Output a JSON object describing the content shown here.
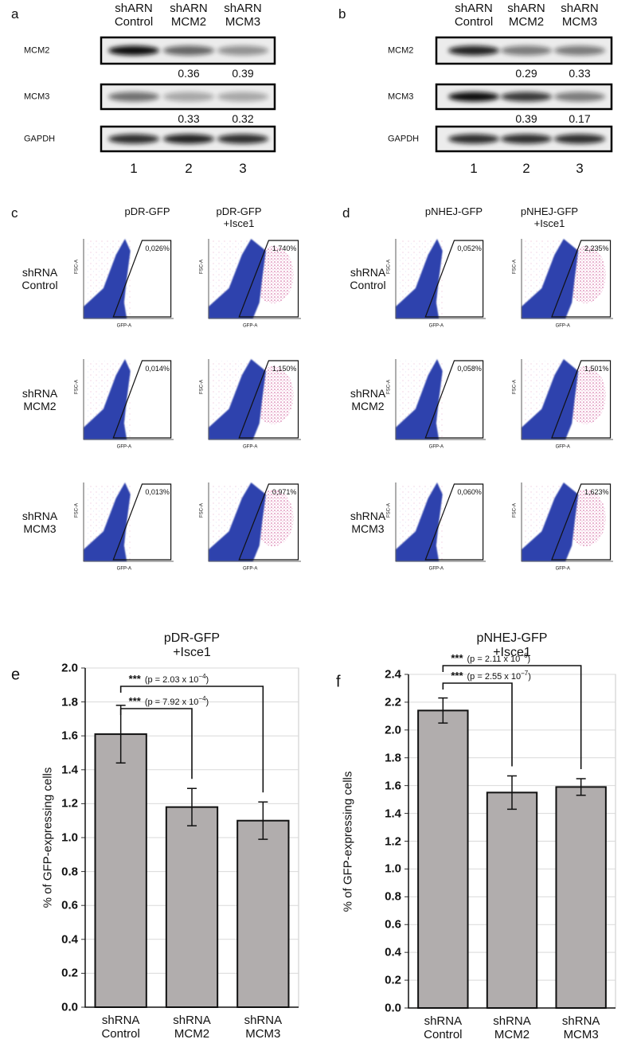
{
  "blots": [
    {
      "label": "a",
      "lanes": [
        "shARN Control",
        "shARN MCM2",
        "shARN MCM3"
      ],
      "rows": [
        {
          "name": "MCM2",
          "ratios": [
            0.36,
            0.39
          ]
        },
        {
          "name": "MCM3",
          "ratios": [
            0.33,
            0.32
          ]
        },
        {
          "name": "GAPDH"
        }
      ],
      "lane_numbers": [
        1,
        2,
        3
      ]
    },
    {
      "label": "b",
      "lanes": [
        "shARN Control",
        "shARN MCM2",
        "shARN MCM3"
      ],
      "rows": [
        {
          "name": "MCM2",
          "ratios": [
            0.29,
            0.33
          ]
        },
        {
          "name": "MCM3",
          "ratios": [
            0.39,
            0.17
          ]
        },
        {
          "name": "GAPDH"
        }
      ],
      "lane_numbers": [
        1,
        2,
        3
      ]
    }
  ],
  "flow": [
    {
      "label": "c",
      "columns": [
        "pDR-GFP",
        "pDR-GFP +Isce1"
      ],
      "rows": [
        "shRNA Control",
        "shRNA MCM2",
        "shRNA MCM3"
      ],
      "y_axis": "FSC-A",
      "x_axis": "GFP-A",
      "gates": [
        [
          "0,026%",
          "1,740%"
        ],
        [
          "0,014%",
          "1,150%"
        ],
        [
          "0,013%",
          "0,971%"
        ]
      ]
    },
    {
      "label": "d",
      "columns": [
        "pNHEJ-GFP",
        "pNHEJ-GFP +Isce1"
      ],
      "rows": [
        "shRNA Control",
        "shRNA MCM2",
        "shRNA MCM3"
      ],
      "y_axis": "FSC-A",
      "x_axis": "GFP-A",
      "gates": [
        [
          "0,052%",
          "2,235%"
        ],
        [
          "0,058%",
          "1,501%"
        ],
        [
          "0,060%",
          "1,623%"
        ]
      ]
    }
  ],
  "chart_data": [
    {
      "type": "bar",
      "panel_label": "e",
      "title": "pDR-GFP +Isce1",
      "y_label": "% of GFP-expressing cells",
      "categories": [
        "shRNA Control",
        "shRNA MCM2",
        "shRNA MCM3"
      ],
      "values": [
        1.61,
        1.18,
        1.1
      ],
      "errors": [
        0.17,
        0.11,
        0.11
      ],
      "color": "#b1adad",
      "ylim": [
        0,
        2.0
      ],
      "yticks": [
        {
          "value": 0,
          "label": "0.0"
        },
        0.2,
        0.4,
        0.6,
        0.8,
        {
          "value": 1,
          "label": "1.0"
        },
        1.2,
        1.4,
        1.6,
        1.8,
        {
          "value": 2,
          "label": "2.0"
        }
      ],
      "grid": true,
      "annotations": [
        {
          "stars": "***",
          "p_text": "(p = 2.03 x 10",
          "exponent": "−4",
          "close": ")"
        },
        {
          "stars": "***",
          "p_text": "(p = 7.92 x 10",
          "exponent": "−4",
          "close": ")"
        }
      ]
    },
    {
      "type": "bar",
      "panel_label": "f",
      "title": "pNHEJ-GFP +Isce1",
      "y_label": "% of GFP-expressing cells",
      "categories": [
        "shRNA Control",
        "shRNA MCM2",
        "shRNA MCM3"
      ],
      "values": [
        2.14,
        1.55,
        1.59
      ],
      "errors": [
        0.09,
        0.12,
        0.06
      ],
      "color": "#b1adad",
      "ylim": [
        0,
        2.4
      ],
      "yticks": [
        {
          "value": 0,
          "label": "0.0"
        },
        0.2,
        0.4,
        0.6,
        0.8,
        {
          "value": 1,
          "label": "1.0"
        },
        1.2,
        1.4,
        1.6,
        1.8,
        {
          "value": 2,
          "label": "2.0"
        },
        2.2,
        2.4
      ],
      "grid": true,
      "annotations": [
        {
          "stars": "***",
          "p_text": "(p = 2.11 x 10",
          "exponent": "−6",
          "close": ")"
        },
        {
          "stars": "***",
          "p_text": "(p = 2.55 x 10",
          "exponent": "−7",
          "close": ")"
        }
      ]
    }
  ]
}
